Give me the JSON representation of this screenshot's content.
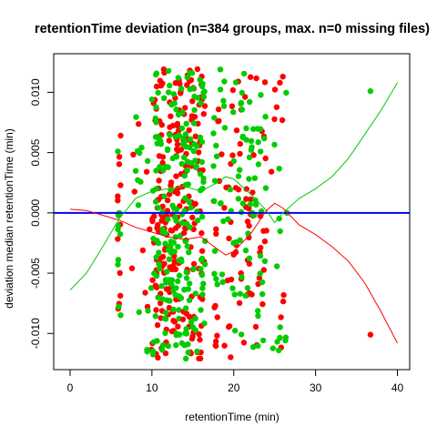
{
  "chart_data": {
    "type": "scatter",
    "title": "retentionTime deviation (n=384 groups, max. n=0 missing files)",
    "xlabel": "retentionTime (min)",
    "ylabel": "deviation median retentionTime (min)",
    "xlim": [
      -2,
      41.5
    ],
    "ylim": [
      -0.013,
      0.0132
    ],
    "xticks": [
      0,
      10,
      20,
      30,
      40
    ],
    "xtick_labels": [
      "0",
      "10",
      "20",
      "30",
      "40"
    ],
    "yticks": [
      -0.01,
      -0.005,
      0.0,
      0.005,
      0.01
    ],
    "ytick_labels": [
      "-0.010",
      "-0.005",
      "0.000",
      "0.005",
      "0.010"
    ],
    "grid": false,
    "legend": "none",
    "reference_line": {
      "y": 0,
      "color": "#0000ff"
    },
    "series_colors": {
      "red": "#ff0000",
      "green": "#00cc00"
    },
    "seed": 384,
    "clusters": [
      {
        "x": [
          5.8,
          6.2
        ],
        "y": [
          -0.0085,
          0.0065
        ],
        "counts": {
          "red": 14,
          "green": 10
        }
      },
      {
        "x": [
          7.5,
          10.0
        ],
        "y": [
          -0.012,
          0.0095
        ],
        "counts": {
          "red": 10,
          "green": 14
        }
      },
      {
        "x": [
          10.0,
          13.5
        ],
        "y": [
          -0.0122,
          0.012
        ],
        "counts": {
          "red": 130,
          "green": 110
        }
      },
      {
        "x": [
          13.5,
          16.5
        ],
        "y": [
          -0.0122,
          0.012
        ],
        "counts": {
          "red": 90,
          "green": 100
        }
      },
      {
        "x": [
          17.5,
          24.0
        ],
        "y": [
          -0.012,
          0.012
        ],
        "counts": {
          "red": 80,
          "green": 90
        }
      },
      {
        "x": [
          24.5,
          26.5
        ],
        "y": [
          -0.0115,
          0.0115
        ],
        "counts": {
          "red": 10,
          "green": 12
        }
      }
    ],
    "outliers": [
      {
        "x": 36.7,
        "y": 0.0101,
        "color": "green"
      },
      {
        "x": 36.7,
        "y": -0.0101,
        "color": "red"
      },
      {
        "x": 26.5,
        "y": 0.0,
        "color": "green"
      },
      {
        "x": 26.0,
        "y": 0.0113,
        "color": "red"
      },
      {
        "x": 25.5,
        "y": -0.0114,
        "color": "green"
      }
    ],
    "curves": [
      {
        "color": "green",
        "points": [
          [
            0,
            -0.0064
          ],
          [
            2,
            -0.005
          ],
          [
            4,
            -0.0028
          ],
          [
            6,
            -0.0005
          ],
          [
            8,
            0.0012
          ],
          [
            10,
            0.0018
          ],
          [
            12,
            0.002
          ],
          [
            14,
            0.0022
          ],
          [
            16,
            0.0018
          ],
          [
            18,
            0.0025
          ],
          [
            19,
            0.003
          ],
          [
            20,
            0.0028
          ],
          [
            22,
            0.0016
          ],
          [
            24,
            0.0002
          ],
          [
            25,
            -0.0008
          ],
          [
            26,
            0.0
          ],
          [
            28,
            0.0012
          ],
          [
            30,
            0.002
          ],
          [
            32,
            0.003
          ],
          [
            34,
            0.0045
          ],
          [
            36,
            0.0065
          ],
          [
            38,
            0.0085
          ],
          [
            40,
            0.0108
          ]
        ]
      },
      {
        "color": "red",
        "points": [
          [
            0,
            0.0003
          ],
          [
            2,
            0.0002
          ],
          [
            4,
            -0.0002
          ],
          [
            6,
            -0.0006
          ],
          [
            8,
            -0.0012
          ],
          [
            10,
            -0.0016
          ],
          [
            12,
            -0.002
          ],
          [
            14,
            -0.0022
          ],
          [
            16,
            -0.002
          ],
          [
            18,
            -0.003
          ],
          [
            19,
            -0.0035
          ],
          [
            20,
            -0.0032
          ],
          [
            22,
            -0.0018
          ],
          [
            24,
            0.0002
          ],
          [
            25,
            0.0008
          ],
          [
            26,
            0.0004
          ],
          [
            28,
            -0.001
          ],
          [
            30,
            -0.0018
          ],
          [
            32,
            -0.0028
          ],
          [
            34,
            -0.004
          ],
          [
            36,
            -0.0058
          ],
          [
            38,
            -0.0082
          ],
          [
            40,
            -0.0108
          ]
        ]
      }
    ]
  }
}
